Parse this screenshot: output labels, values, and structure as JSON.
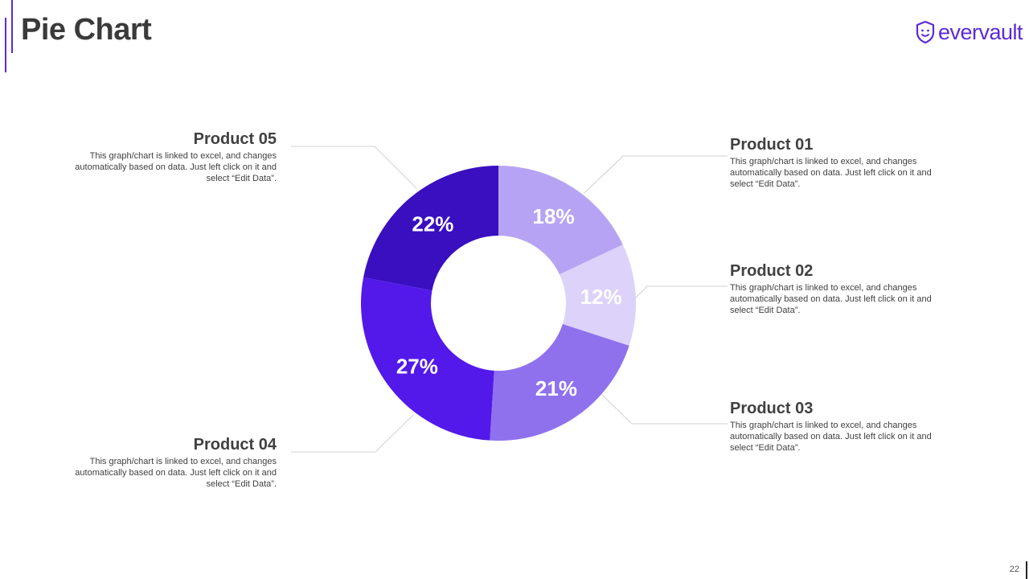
{
  "page": {
    "title": "Pie Chart",
    "page_number": "22"
  },
  "logo": {
    "text": "evervault"
  },
  "colors": {
    "accent": "#5b2bd6",
    "connector": "#d0d0d0"
  },
  "chart_data": {
    "type": "pie",
    "title": "Pie Chart",
    "donut": true,
    "categories": [
      "Product 01",
      "Product 02",
      "Product 03",
      "Product 04",
      "Product 05"
    ],
    "values": [
      18,
      12,
      21,
      27,
      22
    ],
    "labels": [
      "18%",
      "12%",
      "21%",
      "27%",
      "22%"
    ],
    "colors": [
      "#b7a3f4",
      "#dcd2fa",
      "#8f71ee",
      "#5219ea",
      "#3a0fc0"
    ]
  },
  "products": [
    {
      "title": "Product 01",
      "desc": "This graph/chart is linked to excel, and changes automatically based on data. Just left click on it and select “Edit Data”."
    },
    {
      "title": "Product 02",
      "desc": "This graph/chart is linked to excel, and changes automatically based on data. Just left click on it and select “Edit Data”."
    },
    {
      "title": "Product 03",
      "desc": "This graph/chart is linked to excel, and changes automatically based on data. Just left click on it and select “Edit Data”."
    },
    {
      "title": "Product 04",
      "desc": "This graph/chart is linked to excel, and changes automatically based on data. Just left click on it and select “Edit Data”."
    },
    {
      "title": "Product 05",
      "desc": "This graph/chart is linked to excel, and changes automatically based on data. Just left click on it and select “Edit Data”."
    }
  ]
}
